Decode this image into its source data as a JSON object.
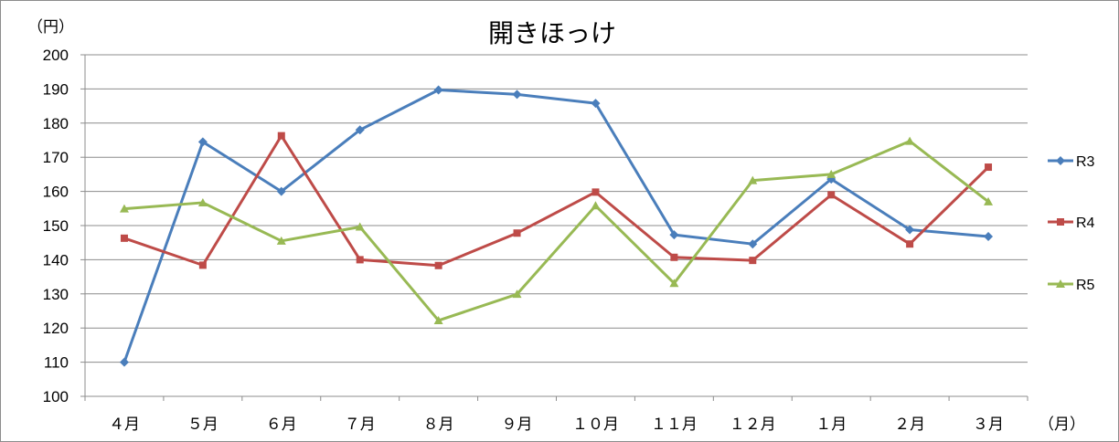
{
  "chart_data": {
    "type": "line",
    "title": "開きほっけ",
    "y_unit": "（円）",
    "x_unit": "（月）",
    "categories": [
      "４月",
      "５月",
      "６月",
      "７月",
      "８月",
      "９月",
      "１０月",
      "１１月",
      "１２月",
      "１月",
      "２月",
      "３月"
    ],
    "y_ticks": [
      "100",
      "110",
      "120",
      "130",
      "140",
      "150",
      "160",
      "170",
      "180",
      "190",
      "200"
    ],
    "ylim": [
      100,
      200
    ],
    "grid": true,
    "legend_position": "right",
    "series": [
      {
        "name": "R3",
        "color": "#4a7ebb",
        "marker": "diamond",
        "values": [
          110,
          174.5,
          160,
          178,
          189.7,
          188.4,
          185.8,
          147.3,
          144.6,
          163.6,
          148.8,
          146.8
        ]
      },
      {
        "name": "R4",
        "color": "#be4b48",
        "marker": "square",
        "values": [
          146.3,
          138.4,
          176.3,
          140,
          138.3,
          147.8,
          159.8,
          140.7,
          139.8,
          159,
          144.6,
          167.1
        ]
      },
      {
        "name": "R5",
        "color": "#98b954",
        "marker": "triangle",
        "values": [
          154.9,
          156.7,
          145.5,
          149.6,
          122.2,
          129.9,
          155.8,
          133.1,
          163.2,
          165,
          174.7,
          157
        ]
      }
    ]
  }
}
